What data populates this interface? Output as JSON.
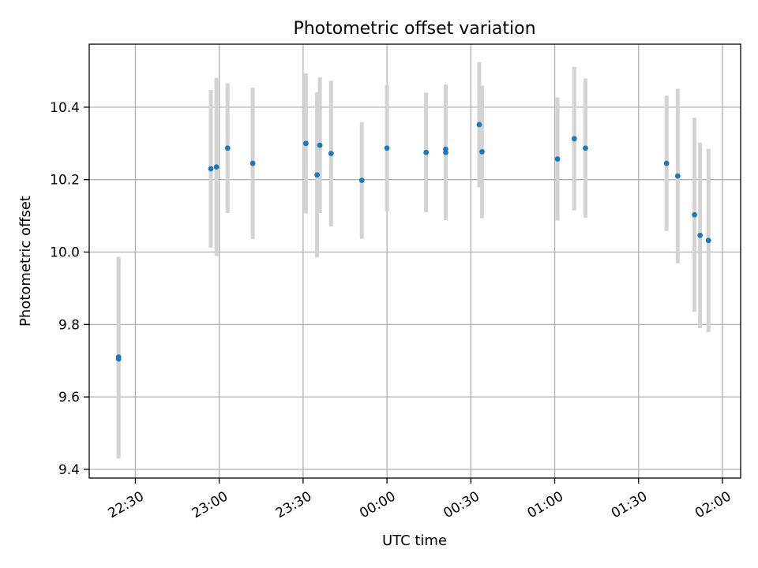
{
  "chart_data": {
    "type": "scatter",
    "title": "Photometric offset variation",
    "xlabel": "UTC time",
    "ylabel": "Photometric offset",
    "x_ticks": [
      "22:30",
      "23:00",
      "23:30",
      "00:00",
      "00:30",
      "01:00",
      "01:30",
      "02:00"
    ],
    "x_tick_offsets_min": [
      0,
      30,
      60,
      90,
      120,
      150,
      180,
      210
    ],
    "xlim_min": [
      -16.5,
      216.5
    ],
    "y_ticks": [
      9.4,
      9.6,
      9.8,
      10.0,
      10.2,
      10.4
    ],
    "ylim": [
      9.376,
      10.574
    ],
    "grid": true,
    "marker_color": "#1f77b4",
    "errorbar_color": "#d3d3d3",
    "points": [
      {
        "t": "22:24",
        "y": 9.705,
        "err": 0.275
      },
      {
        "t": "22:24",
        "y": 9.71,
        "err": 0.277
      },
      {
        "t": "22:57",
        "y": 10.23,
        "err": 0.218
      },
      {
        "t": "22:59",
        "y": 10.235,
        "err": 0.246
      },
      {
        "t": "23:03",
        "y": 10.287,
        "err": 0.179
      },
      {
        "t": "23:12",
        "y": 10.245,
        "err": 0.209
      },
      {
        "t": "23:31",
        "y": 10.3,
        "err": 0.193
      },
      {
        "t": "23:35",
        "y": 10.213,
        "err": 0.228
      },
      {
        "t": "23:36",
        "y": 10.295,
        "err": 0.187
      },
      {
        "t": "23:40",
        "y": 10.272,
        "err": 0.201
      },
      {
        "t": "23:51",
        "y": 10.198,
        "err": 0.161
      },
      {
        "t": "00:00",
        "y": 10.287,
        "err": 0.175
      },
      {
        "t": "00:14",
        "y": 10.275,
        "err": 0.165
      },
      {
        "t": "00:21",
        "y": 10.284,
        "err": 0.178
      },
      {
        "t": "00:21",
        "y": 10.275,
        "err": 0.187
      },
      {
        "t": "00:33",
        "y": 10.352,
        "err": 0.173
      },
      {
        "t": "00:34",
        "y": 10.277,
        "err": 0.183
      },
      {
        "t": "01:01",
        "y": 10.257,
        "err": 0.17
      },
      {
        "t": "01:07",
        "y": 10.313,
        "err": 0.198
      },
      {
        "t": "01:11",
        "y": 10.287,
        "err": 0.192
      },
      {
        "t": "01:40",
        "y": 10.245,
        "err": 0.187
      },
      {
        "t": "01:44",
        "y": 10.21,
        "err": 0.241
      },
      {
        "t": "01:50",
        "y": 10.103,
        "err": 0.268
      },
      {
        "t": "01:52",
        "y": 10.046,
        "err": 0.256
      },
      {
        "t": "01:55",
        "y": 10.032,
        "err": 0.253
      }
    ]
  }
}
